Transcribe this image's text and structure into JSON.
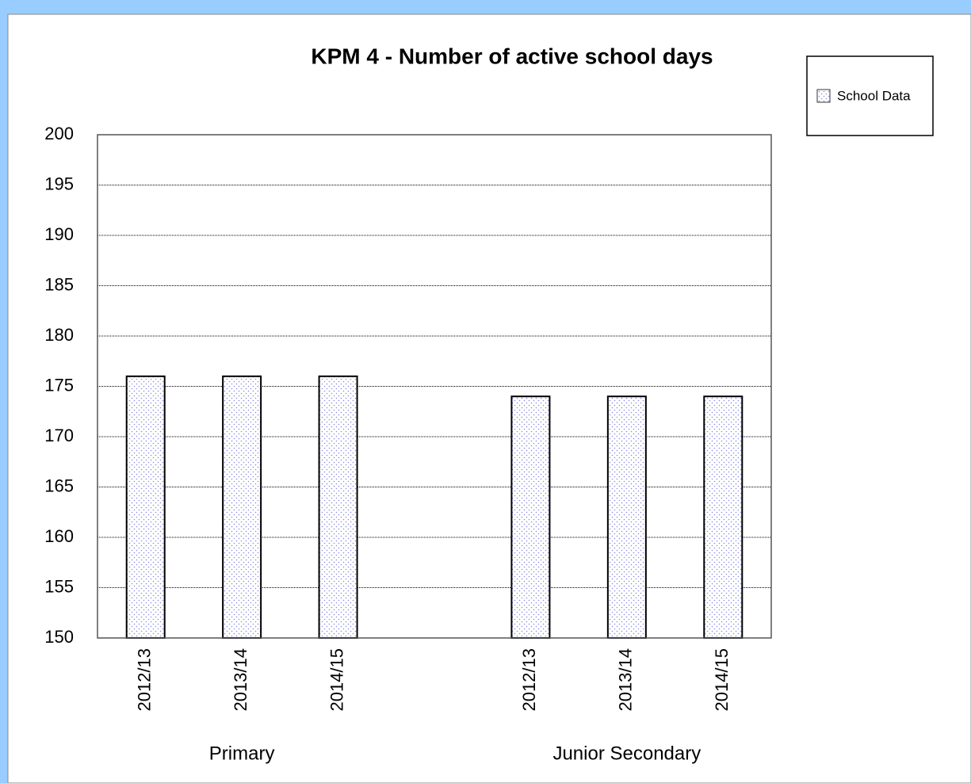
{
  "chart_data": {
    "type": "bar",
    "title": "KPM 4 - Number of active school days",
    "legend": "School Data",
    "color": "#8a8ae0",
    "groups": [
      {
        "label": "Primary",
        "categories": [
          "2012/13",
          "2013/14",
          "2014/15"
        ],
        "values": [
          176,
          176,
          176
        ]
      },
      {
        "label": "Junior Secondary",
        "categories": [
          "2012/13",
          "2013/14",
          "2014/15"
        ],
        "values": [
          174,
          174,
          174
        ]
      }
    ],
    "ylim": [
      150,
      200
    ],
    "yticks": [
      150,
      155,
      160,
      165,
      170,
      175,
      180,
      185,
      190,
      195,
      200
    ],
    "grid": true
  }
}
